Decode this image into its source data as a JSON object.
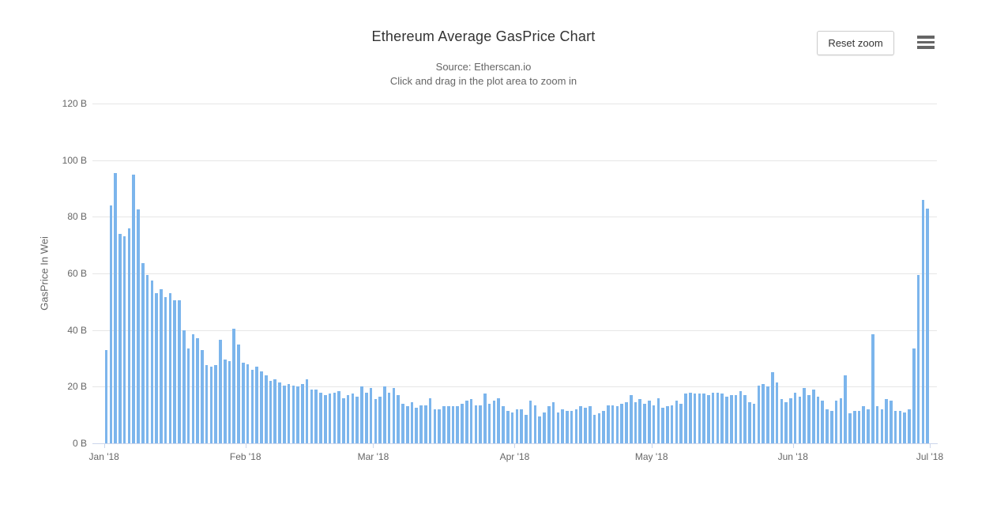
{
  "header": {
    "title": "Ethereum Average GasPrice Chart",
    "subtitle_line1": "Source: Etherscan.io",
    "subtitle_line2": "Click and drag in the plot area to zoom in"
  },
  "toolbar": {
    "reset_zoom_label": "Reset zoom",
    "menu_icon_name": "hamburger-menu-icon"
  },
  "colors": {
    "bar": "#7cb5ec",
    "gridline": "#e6e6e6",
    "axis_line": "#ccd6eb",
    "title_text": "#333333",
    "muted_text": "#666666"
  },
  "chart_data": {
    "type": "bar",
    "title": "Ethereum Average GasPrice Chart",
    "subtitle": [
      "Source: Etherscan.io",
      "Click and drag in the plot area to zoom in"
    ],
    "xlabel": "",
    "ylabel": "GasPrice In Wei",
    "ylim": [
      0,
      120
    ],
    "grid": true,
    "legend": false,
    "x_unit": "day",
    "x_range_shown": "Jan '18 to Jul '18",
    "ytick_values": [
      0,
      20,
      40,
      60,
      80,
      100,
      120
    ],
    "ytick_labels": [
      "0 B",
      "20 B",
      "40 B",
      "60 B",
      "80 B",
      "100 B",
      "120 B"
    ],
    "xtick_labels": [
      "Jan '18",
      "Feb '18",
      "Mar '18",
      "Apr '18",
      "May '18",
      "Jun '18",
      "Jul '18"
    ],
    "xtick_day_offsets": [
      0,
      31,
      59,
      90,
      120,
      151,
      181
    ],
    "values_unit": "B (billion Wei)",
    "values": [
      33,
      84,
      95.5,
      74,
      73,
      76,
      95,
      82.5,
      63.5,
      59.5,
      57.5,
      53,
      54.5,
      51.5,
      53,
      50.5,
      50.5,
      40,
      33.5,
      38.5,
      37,
      33,
      27.5,
      27,
      27.5,
      36.5,
      29.5,
      29,
      40.5,
      35,
      28.5,
      28,
      26,
      27,
      25.5,
      24,
      22,
      22.5,
      21.5,
      20.5,
      21,
      20.5,
      20,
      21,
      22.5,
      19,
      19,
      18,
      17,
      17.5,
      18,
      18.5,
      16,
      17,
      17.5,
      16.5,
      20,
      18,
      19.5,
      15.5,
      16.5,
      20,
      18,
      19.5,
      17,
      14,
      13,
      14.5,
      12.5,
      13.5,
      13.5,
      16,
      12,
      12,
      13,
      13,
      13,
      13,
      14,
      15,
      15.5,
      13.5,
      13.5,
      17.5,
      14,
      15,
      16,
      13,
      11.5,
      11,
      12,
      12,
      10,
      15,
      13.5,
      9.5,
      11,
      13,
      14.5,
      11,
      12,
      11.5,
      11.5,
      12,
      13,
      12.5,
      13,
      10,
      10.5,
      11.5,
      13.5,
      13.5,
      13,
      14,
      14.5,
      17,
      14.5,
      15.5,
      14,
      15,
      13.5,
      16,
      12.5,
      13,
      13.5,
      15,
      14,
      17.5,
      18,
      17.5,
      17.5,
      17.5,
      17,
      18,
      18,
      17.5,
      16.5,
      17,
      17,
      18.5,
      17,
      14.5,
      14,
      20.5,
      21,
      20,
      25,
      21.5,
      15.5,
      14.5,
      16,
      18,
      16.5,
      19.5,
      17,
      19,
      16.5,
      15,
      12,
      11.5,
      15,
      16,
      24,
      10.5,
      11.5,
      11.5,
      13,
      12,
      38.5,
      13,
      12,
      15.5,
      15,
      11.5,
      11.5,
      11,
      12,
      33.5,
      59.5,
      86,
      83
    ]
  }
}
